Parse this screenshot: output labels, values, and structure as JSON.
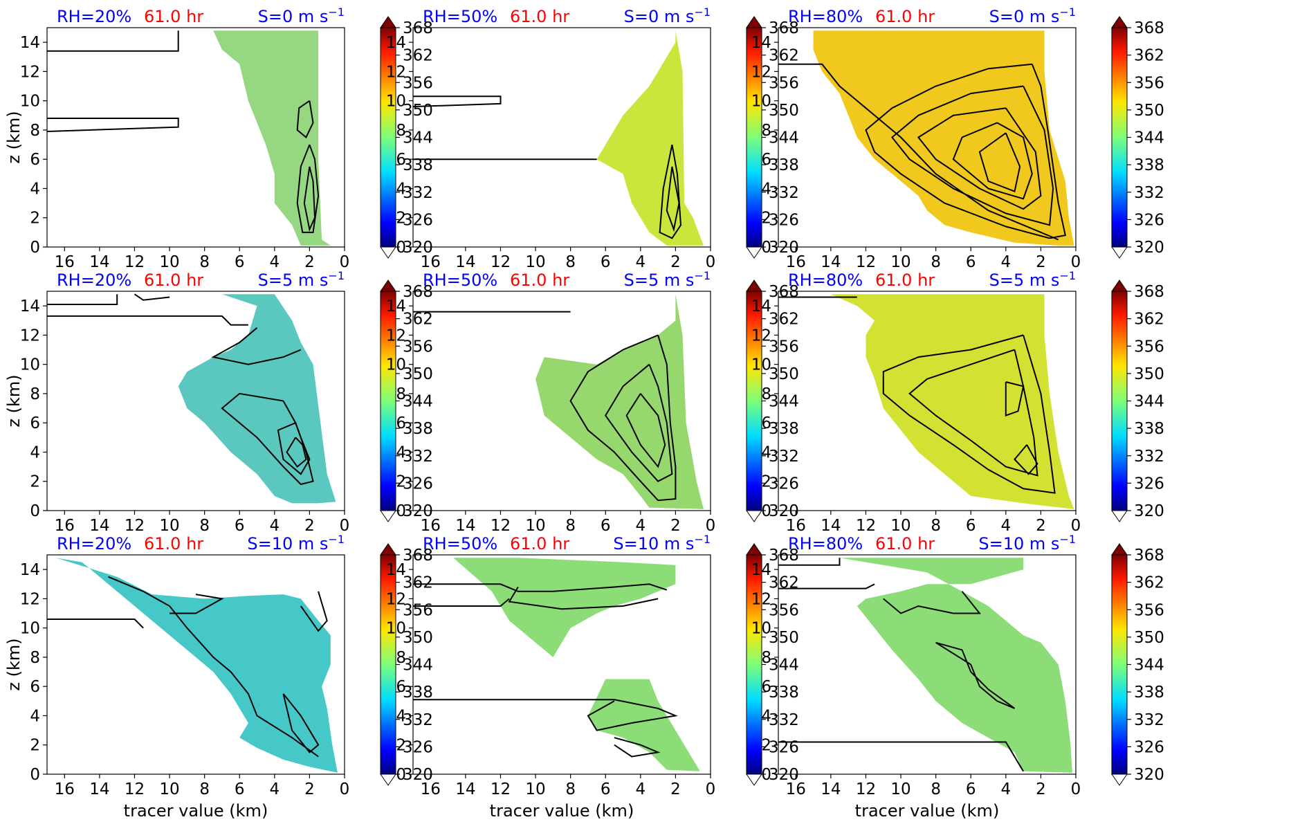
{
  "chart_data": {
    "type": "filled-contour-grid",
    "time_label": "61.0 hr",
    "xlabel": "tracer value (km)",
    "ylabel": "z (km)",
    "x_ticks": [
      "16",
      "14",
      "12",
      "10",
      "8",
      "6",
      "4",
      "2",
      "0"
    ],
    "xlim": [
      17,
      0
    ],
    "y_ticks": [
      "0",
      "2",
      "4",
      "6",
      "8",
      "10",
      "12",
      "14"
    ],
    "ylim": [
      0,
      15
    ],
    "colorbar": {
      "ticks": [
        "320",
        "326",
        "332",
        "338",
        "344",
        "350",
        "356",
        "362",
        "368"
      ],
      "range": [
        320,
        368
      ],
      "extend": "both",
      "colormap": "jet"
    },
    "colors": {
      "rh_label": "#0000ff",
      "time_label": "#ff0000",
      "shear_label": "#0000ff",
      "contour": "#000000"
    },
    "panels": [
      {
        "rh": "RH=20%",
        "shear": "S=0 m s",
        "fill": "rgb(150,215,130)"
      },
      {
        "rh": "RH=50%",
        "shear": "S=0 m s",
        "fill": "rgb(200,230,60)"
      },
      {
        "rh": "RH=80%",
        "shear": "S=0 m s",
        "fill": "rgb(240,200,30)"
      },
      {
        "rh": "RH=20%",
        "shear": "S=5 m s",
        "fill": "rgb(90,200,190)"
      },
      {
        "rh": "RH=50%",
        "shear": "S=5 m s",
        "fill": "rgb(150,215,110)"
      },
      {
        "rh": "RH=80%",
        "shear": "S=5 m s",
        "fill": "rgb(210,225,50)"
      },
      {
        "rh": "RH=20%",
        "shear": "S=10 m s",
        "fill": "rgb(70,200,200)"
      },
      {
        "rh": "RH=50%",
        "shear": "S=10 m s",
        "fill": "rgb(140,220,120)"
      },
      {
        "rh": "RH=80%",
        "shear": "S=10 m s",
        "fill": "rgb(140,220,120)"
      }
    ]
  }
}
